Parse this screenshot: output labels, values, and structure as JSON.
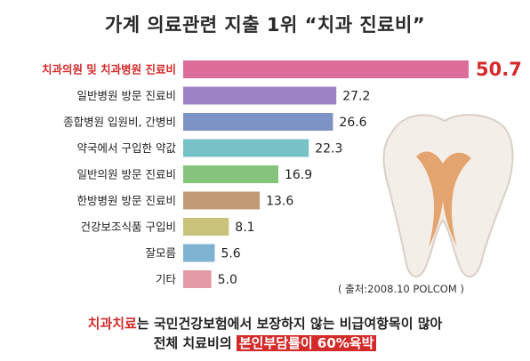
{
  "title": "가계 의료관련 지출 1위 “치과 진료비”",
  "chart_data": {
    "type": "bar",
    "orientation": "horizontal",
    "categories": [
      "치과의원 및 치과병원 진료비",
      "일반병원 방문 진료비",
      "종합병원 입원비, 간병비",
      "약국에서 구입한 약값",
      "일반의원 방문 진료비",
      "한방병원 방문 진료비",
      "건강보조식품 구입비",
      "잘모름",
      "기타"
    ],
    "values": [
      50.7,
      27.2,
      26.6,
      22.3,
      16.9,
      13.6,
      8.1,
      5.6,
      5.0
    ],
    "value_labels": [
      "50.7",
      "27.2",
      "26.6",
      "22.3",
      "16.9",
      "13.6",
      "8.1",
      "5.6",
      "5.0"
    ],
    "colors": [
      "#dc6c98",
      "#9e82c6",
      "#7d93c6",
      "#77c2c6",
      "#86c47d",
      "#c39a76",
      "#c8c27a",
      "#7fb1d0",
      "#e39aa6"
    ],
    "highlight_index": 0,
    "highlight_color": "#d42a2a",
    "xlim": [
      0,
      50.7
    ]
  },
  "source": "( 출처:2008.10 POLCOM )",
  "note": {
    "line1_red": "치과치료",
    "line1_rest": "는 국민건강보험에서 보장하지 않는 비급여항목이 많아",
    "line2_prefix": "전체 치료비의 ",
    "line2_box": "본인부담률이 60%육박"
  }
}
